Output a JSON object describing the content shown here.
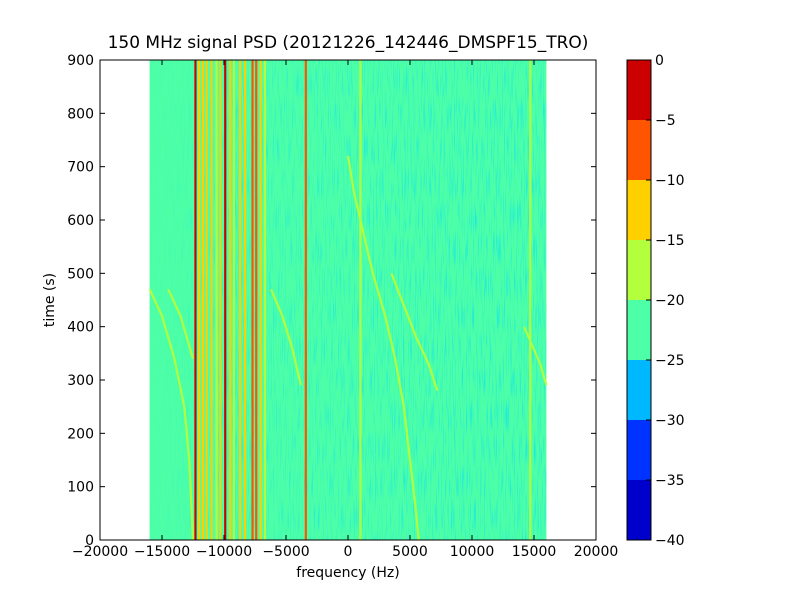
{
  "chart_data": {
    "type": "heatmap",
    "title": "150 MHz signal PSD (20121226_142446_DMSPF15_TRO)",
    "xlabel": "frequency (Hz)",
    "ylabel": "time (s)",
    "xlim": [
      -20000,
      20000
    ],
    "ylim": [
      0,
      900
    ],
    "x_ticks": [
      -20000,
      -15000,
      -10000,
      -5000,
      0,
      5000,
      10000,
      15000,
      20000
    ],
    "y_ticks": [
      0,
      100,
      200,
      300,
      400,
      500,
      600,
      700,
      800,
      900
    ],
    "data_extent_x": [
      -16000,
      16000
    ],
    "grid": false,
    "colorbar": {
      "levels": [
        -40,
        -35,
        -30,
        -25,
        -20,
        -15,
        -10,
        -5,
        0
      ],
      "tick_labels": [
        "−40",
        "−35",
        "−30",
        "−25",
        "−20",
        "−15",
        "−10",
        "−5",
        "0"
      ],
      "colors": [
        "#0000cc",
        "#0033ff",
        "#00b8ff",
        "#4dffa6",
        "#b3ff3d",
        "#ffd000",
        "#ff5500",
        "#cc0000"
      ]
    },
    "background_level_psd": -22.5,
    "vertical_lines": [
      {
        "x": -12300,
        "psd": -2
      },
      {
        "x": -12000,
        "psd": -12
      },
      {
        "x": -11700,
        "psd": -12
      },
      {
        "x": -11400,
        "psd": -12
      },
      {
        "x": -11000,
        "psd": -12
      },
      {
        "x": -10600,
        "psd": -17
      },
      {
        "x": -10300,
        "psd": -12
      },
      {
        "x": -9900,
        "psd": -2
      },
      {
        "x": -9500,
        "psd": -12
      },
      {
        "x": -9200,
        "psd": -17
      },
      {
        "x": -8700,
        "psd": -12
      },
      {
        "x": -8300,
        "psd": -12
      },
      {
        "x": -7700,
        "psd": -7
      },
      {
        "x": -7400,
        "psd": -7
      },
      {
        "x": -7050,
        "psd": -12
      },
      {
        "x": -6700,
        "psd": -17
      },
      {
        "x": -3400,
        "psd": -7
      },
      {
        "x": 1000,
        "psd": -17
      },
      {
        "x": 14700,
        "psd": -17
      }
    ],
    "curves": [
      {
        "psd": -17,
        "points": [
          [
            -16000,
            470
          ],
          [
            -15000,
            420
          ],
          [
            -14000,
            340
          ],
          [
            -13200,
            250
          ],
          [
            -12800,
            150
          ],
          [
            -12500,
            0
          ]
        ]
      },
      {
        "psd": -17,
        "points": [
          [
            -14500,
            470
          ],
          [
            -13500,
            420
          ],
          [
            -12500,
            340
          ]
        ]
      },
      {
        "psd": -17,
        "points": [
          [
            -6200,
            470
          ],
          [
            -5300,
            420
          ],
          [
            -4500,
            360
          ],
          [
            -3800,
            290
          ]
        ]
      },
      {
        "psd": -17,
        "points": [
          [
            0,
            720
          ],
          [
            500,
            650
          ],
          [
            1000,
            600
          ],
          [
            2000,
            500
          ],
          [
            3000,
            420
          ],
          [
            3800,
            340
          ],
          [
            4500,
            250
          ],
          [
            5000,
            150
          ],
          [
            5500,
            50
          ],
          [
            5700,
            0
          ]
        ]
      },
      {
        "psd": -17,
        "points": [
          [
            3500,
            500
          ],
          [
            4500,
            440
          ],
          [
            5500,
            380
          ],
          [
            6500,
            330
          ],
          [
            7200,
            280
          ]
        ]
      },
      {
        "psd": -17,
        "points": [
          [
            14200,
            400
          ],
          [
            15500,
            330
          ],
          [
            16000,
            290
          ]
        ]
      }
    ]
  }
}
